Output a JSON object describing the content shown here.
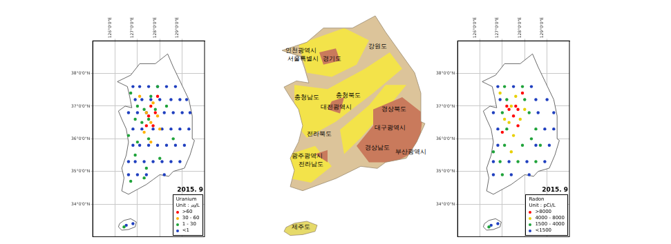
{
  "chart_data": [
    {
      "type": "scatter",
      "title": "Uranium",
      "subtitle": "Unit : ㎍/L",
      "annotation": "2015. 9",
      "xlim": [
        125,
        130
      ],
      "ylim": [
        33,
        39
      ],
      "xticks": [
        {
          "value": 126,
          "label": "126°0'0\"E"
        },
        {
          "value": 127,
          "label": "127°0'0\"E"
        },
        {
          "value": 128,
          "label": "128°0'0\"E"
        },
        {
          "value": 129,
          "label": "129°0'0\"E"
        }
      ],
      "yticks": [
        {
          "value": 34,
          "label": "34°0'0\"N"
        },
        {
          "value": 35,
          "label": "35°0'0\"N"
        },
        {
          "value": 36,
          "label": "36°0'0\"N"
        },
        {
          "value": 37,
          "label": "37°0'0\"N"
        },
        {
          "value": 38,
          "label": "38°0'0\"N"
        }
      ],
      "grid": true,
      "legend": "lower right",
      "marker": "circle",
      "series": [
        {
          "name": ">60",
          "color": "#ff0000",
          "x": [
            127.5,
            127.7,
            127.8,
            127.4,
            127.6,
            127.9
          ],
          "values": [
            36.7,
            36.4,
            36.8,
            36.4,
            37.0,
            37.3
          ]
        },
        {
          "name": "30 - 60",
          "color": "#ffb000",
          "x": [
            127.4,
            127.6,
            127.3,
            127.7,
            127.9,
            127.1,
            127.6,
            128.0
          ],
          "values": [
            36.8,
            36.5,
            36.2,
            37.1,
            36.7,
            37.3,
            35.9,
            36.3
          ]
        },
        {
          "name": "1 - 30",
          "color": "#1fa33a",
          "x": [
            126.7,
            127.0,
            127.3,
            127.5,
            127.2,
            126.9,
            127.8,
            127.6,
            127.9,
            127.0,
            126.9,
            127.4,
            126.7,
            128.0,
            128.6,
            127.5,
            128.3,
            126.6,
            127.3,
            126.4
          ],
          "values": [
            37.4,
            37.0,
            36.9,
            36.6,
            36.5,
            36.6,
            36.9,
            37.3,
            37.6,
            35.9,
            35.5,
            35.1,
            34.7,
            35.4,
            36.0,
            36.0,
            37.0,
            36.1,
            34.8,
            33.3
          ]
        },
        {
          "name": "<1",
          "color": "#1f3fbf",
          "x": [
            126.8,
            127.1,
            127.5,
            127.9,
            128.3,
            128.7,
            126.9,
            127.2,
            127.6,
            128.0,
            128.5,
            128.9,
            129.2,
            126.6,
            127.0,
            127.4,
            128.2,
            128.6,
            129.0,
            129.35,
            126.8,
            127.2,
            127.7,
            128.1,
            128.5,
            128.9,
            129.3,
            126.8,
            127.1,
            127.5,
            127.9,
            128.3,
            128.7,
            129.1,
            126.6,
            126.9,
            127.3,
            127.7,
            128.1,
            128.5,
            128.9,
            126.6,
            127.0,
            127.4,
            128.2,
            126.5,
            126.8
          ],
          "values": [
            37.6,
            37.6,
            37.6,
            37.6,
            37.6,
            37.6,
            37.2,
            37.2,
            37.2,
            37.2,
            37.2,
            37.2,
            37.2,
            36.8,
            36.8,
            36.8,
            36.8,
            36.8,
            36.8,
            36.8,
            36.3,
            36.3,
            36.3,
            36.3,
            36.3,
            36.3,
            36.3,
            35.8,
            35.8,
            35.8,
            35.8,
            35.8,
            35.8,
            35.8,
            35.3,
            35.3,
            35.3,
            35.3,
            35.3,
            35.3,
            35.3,
            34.9,
            34.9,
            34.9,
            34.9,
            33.35,
            33.4
          ]
        }
      ]
    },
    {
      "type": "scatter",
      "title": "Radon",
      "subtitle": "Unit : pCi/L",
      "annotation": "2015. 9",
      "xlim": [
        125,
        130
      ],
      "ylim": [
        33,
        39
      ],
      "xticks": [
        {
          "value": 126,
          "label": "126°0'0\"E"
        },
        {
          "value": 127,
          "label": "127°0'0\"E"
        },
        {
          "value": 128,
          "label": "128°0'0\"E"
        },
        {
          "value": 129,
          "label": "129°0'0\"E"
        }
      ],
      "yticks": [
        {
          "value": 34,
          "label": "34°0'0\"N"
        },
        {
          "value": 35,
          "label": "35°0'0\"N"
        },
        {
          "value": 36,
          "label": "36°0'0\"N"
        },
        {
          "value": 37,
          "label": "37°0'0\"N"
        },
        {
          "value": 38,
          "label": "38°0'0\"N"
        }
      ],
      "grid": true,
      "legend": "lower right",
      "marker": "circle",
      "series": [
        {
          "name": ">8000",
          "color": "#ff0000",
          "x": [
            127.5,
            127.7,
            127.6,
            127.9,
            127.3,
            127.2,
            127.7,
            127.0
          ],
          "values": [
            36.7,
            36.4,
            37.0,
            37.4,
            36.9,
            37.0,
            36.9,
            36.2
          ]
        },
        {
          "name": "4000 - 8000",
          "color": "#e8d000",
          "x": [
            127.4,
            127.6,
            127.8,
            127.3,
            127.5,
            127.4,
            128.0,
            126.9,
            127.1
          ],
          "values": [
            37.0,
            37.3,
            36.6,
            36.5,
            36.1,
            35.6,
            36.9,
            37.4,
            36.6
          ]
        },
        {
          "name": "1500 - 4000",
          "color": "#1fa33a",
          "x": [
            127.1,
            127.9,
            127.2,
            128.0,
            127.0,
            128.2,
            127.2,
            128.5,
            127.1,
            127.9,
            128.7,
            126.9,
            127.7,
            128.5,
            127.0,
            126.6,
            128.3,
            126.4
          ],
          "values": [
            37.6,
            37.6,
            37.2,
            37.2,
            36.8,
            36.8,
            36.3,
            36.3,
            35.8,
            35.8,
            35.8,
            35.3,
            35.3,
            35.3,
            34.9,
            35.6,
            36.0,
            33.3
          ]
        },
        {
          "name": "<1500",
          "color": "#1f3fbf",
          "x": [
            126.8,
            127.5,
            128.3,
            129.0,
            128.5,
            126.9,
            126.6,
            129.3,
            128.6,
            126.8,
            129.3,
            128.9,
            128.5,
            129.1,
            126.8,
            126.6,
            127.3,
            128.1,
            128.9,
            126.6,
            127.4,
            128.2,
            126.5,
            126.8
          ],
          "values": [
            37.6,
            37.6,
            37.6,
            37.2,
            37.2,
            37.2,
            36.8,
            36.8,
            36.8,
            36.3,
            36.3,
            36.3,
            35.8,
            35.8,
            35.8,
            35.3,
            35.3,
            35.3,
            35.3,
            34.9,
            34.9,
            34.9,
            33.35,
            33.4
          ]
        }
      ]
    }
  ],
  "geology_map": {
    "labels": [
      "인천광역시",
      "서울특별시",
      "경기도",
      "강원도",
      "충청남도",
      "충청북도",
      "대전광역시",
      "경상북도",
      "대구광역시",
      "전라북도",
      "경상남도",
      "부산광역시",
      "광주광역시",
      "전라남도",
      "제주도"
    ]
  }
}
